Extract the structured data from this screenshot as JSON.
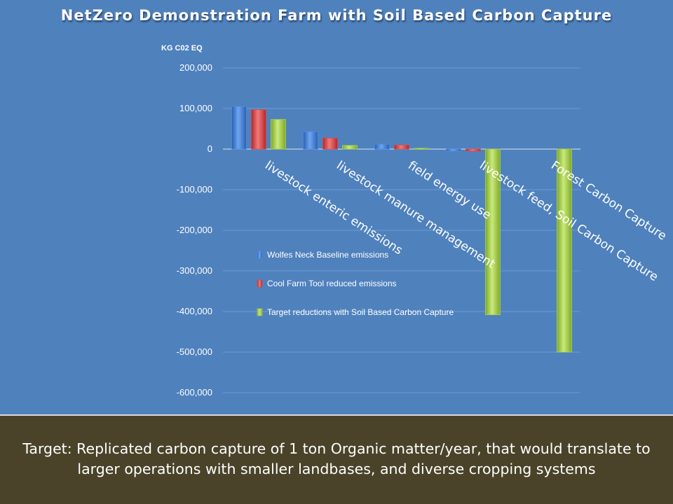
{
  "slide": {
    "title": "NetZero Demonstration Farm with Soil Based Carbon Capture",
    "caption_line1": "Target: Replicated carbon capture of 1 ton Organic matter/year, that would translate to",
    "caption_line2": "larger operations with smaller landbases, and diverse cropping systems"
  },
  "chart_data": {
    "type": "bar",
    "title": "NetZero Demonstration Farm with Soil Based Carbon Capture",
    "ylabel": "KG C02 EQ",
    "xlabel": "",
    "ylim": [
      -600000,
      200000
    ],
    "yticks": [
      200000,
      100000,
      0,
      -100000,
      -200000,
      -300000,
      -400000,
      -500000,
      -600000
    ],
    "ytick_labels": [
      "200,000",
      "100,000",
      "0",
      "-100,000",
      "-200,000",
      "-300,000",
      "-400,000",
      "-500,000",
      "-600,000"
    ],
    "grid": true,
    "legend_position": "inside-center-left",
    "categories": [
      "livestock enteric emissions",
      "livestock manure management",
      "field energy use",
      "livestock feed, Soil Carbon Capture",
      "Forest Carbon Capture"
    ],
    "series": [
      {
        "name": "Wolfes Neck Baseline emissions",
        "color": "#4f8fe6",
        "values": [
          105000,
          43000,
          12000,
          -5000,
          0
        ]
      },
      {
        "name": "Cool Farm Tool reduced emissions",
        "color": "#e04a4a",
        "values": [
          97000,
          27000,
          10000,
          -5000,
          0
        ]
      },
      {
        "name": "Target  reductions with Soil Based Carbon Capture",
        "color": "#a8d44a",
        "values": [
          73000,
          9000,
          2000,
          -408000,
          -500000
        ]
      }
    ]
  }
}
